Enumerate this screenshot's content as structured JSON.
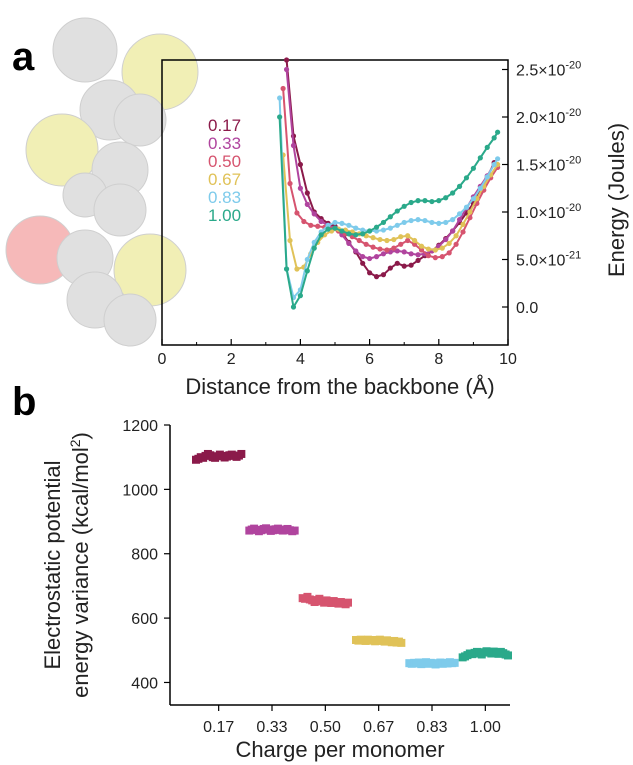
{
  "panel_a_letter": "a",
  "panel_b_letter": "b",
  "colors": {
    "0.17": "#8b1a4a",
    "0.33": "#b0449e",
    "0.50": "#d6546f",
    "0.67": "#e0c258",
    "0.83": "#7ecbeb",
    "1.00": "#2aa98a"
  },
  "chart_data": [
    {
      "type": "line",
      "panel": "a",
      "xlabel": "Distance from the backbone (Å)",
      "ylabel": "Energy (Joules)",
      "xlim": [
        0,
        10
      ],
      "ylim": [
        -4e-21,
        2.6e-20
      ],
      "x_ticks": [
        "0",
        "2",
        "4",
        "6",
        "8",
        "10"
      ],
      "y_ticks": [
        {
          "value": 0,
          "base": "0.0",
          "exp": ""
        },
        {
          "value": 5e-21,
          "base": "5.0×10",
          "exp": "-21"
        },
        {
          "value": 1e-20,
          "base": "1.0×10",
          "exp": "-20"
        },
        {
          "value": 1.5e-20,
          "base": "1.5×10",
          "exp": "-20"
        },
        {
          "value": 2e-20,
          "base": "2.0×10",
          "exp": "-20"
        },
        {
          "value": 2.5e-20,
          "base": "2.5×10",
          "exp": "-20"
        }
      ],
      "legend_position": "top-left",
      "grid": false,
      "series": [
        {
          "name": "0.17",
          "x": [
            3.6,
            3.8,
            4.0,
            4.2,
            4.4,
            4.6,
            4.8,
            5.0,
            5.2,
            5.4,
            5.6,
            5.8,
            6.0,
            6.2,
            6.4,
            6.6,
            6.8,
            7.0,
            7.2,
            7.4,
            7.6,
            7.8,
            8.0,
            8.2,
            8.4,
            8.6,
            8.8,
            9.0,
            9.2,
            9.4,
            9.6
          ],
          "y": [
            2.6e-20,
            1.8e-20,
            1.5e-20,
            1.2e-20,
            1e-20,
            9.3e-21,
            8.8e-21,
            8.5e-21,
            7.8e-21,
            6.8e-21,
            5.8e-21,
            4.6e-21,
            3.6e-21,
            3.2e-21,
            3.4e-21,
            4.1e-21,
            4.6e-21,
            4.3e-21,
            4.4e-21,
            4.9e-21,
            5.4e-21,
            5.9e-21,
            6.5e-21,
            7.2e-21,
            8e-21,
            8.9e-21,
            9.9e-21,
            1.09e-20,
            1.22e-20,
            1.36e-20,
            1.52e-20
          ]
        },
        {
          "name": "0.33",
          "x": [
            3.6,
            3.8,
            4.0,
            4.2,
            4.4,
            4.6,
            4.8,
            5.0,
            5.2,
            5.4,
            5.6,
            5.8,
            6.0,
            6.2,
            6.4,
            6.6,
            6.8,
            7.0,
            7.2,
            7.4,
            7.6,
            7.8,
            8.0,
            8.2,
            8.4,
            8.6,
            8.8,
            9.0,
            9.2,
            9.4,
            9.6
          ],
          "y": [
            2.5e-20,
            1.7e-20,
            1.25e-20,
            1.08e-20,
            9.8e-21,
            9e-21,
            8.6e-21,
            8.3e-21,
            7.6e-21,
            6.7e-21,
            5.9e-21,
            5.3e-21,
            5.1e-21,
            5.3e-21,
            5.6e-21,
            5.8e-21,
            5.9e-21,
            5.8e-21,
            5.6e-21,
            5.5e-21,
            5.6e-21,
            5.9e-21,
            6.4e-21,
            7.1e-21,
            8e-21,
            9.2e-21,
            1.04e-20,
            1.16e-20,
            1.27e-20,
            1.38e-20,
            1.5e-20
          ]
        },
        {
          "name": "0.50",
          "x": [
            3.5,
            3.7,
            3.9,
            4.1,
            4.3,
            4.5,
            4.7,
            4.9,
            5.1,
            5.3,
            5.5,
            5.7,
            5.9,
            6.1,
            6.3,
            6.5,
            6.7,
            6.9,
            7.1,
            7.3,
            7.5,
            7.7,
            7.9,
            8.1,
            8.3,
            8.5,
            8.7,
            8.9,
            9.1,
            9.3,
            9.5,
            9.7
          ],
          "y": [
            2.3e-20,
            1.3e-20,
            9.9e-21,
            9e-21,
            8.6e-21,
            8.5e-21,
            8.4e-21,
            8.2e-21,
            8e-21,
            7.7e-21,
            7.4e-21,
            7e-21,
            6.6e-21,
            6.3e-21,
            6.1e-21,
            6e-21,
            6.2e-21,
            6.6e-21,
            7e-21,
            6.6e-21,
            6e-21,
            5.4e-21,
            5.2e-21,
            5.3e-21,
            5.7e-21,
            6.6e-21,
            7.9e-21,
            9.4e-21,
            1.09e-20,
            1.23e-20,
            1.36e-20,
            1.47e-20
          ]
        },
        {
          "name": "0.67",
          "x": [
            3.5,
            3.7,
            3.9,
            4.1,
            4.3,
            4.5,
            4.7,
            4.9,
            5.1,
            5.3,
            5.5,
            5.7,
            5.9,
            6.1,
            6.3,
            6.5,
            6.7,
            6.9,
            7.1,
            7.3,
            7.5,
            7.7,
            7.9,
            8.1,
            8.3,
            8.5,
            8.7,
            8.9,
            9.1,
            9.3,
            9.5,
            9.7
          ],
          "y": [
            1.6e-20,
            7e-21,
            4e-21,
            4.2e-21,
            5.6e-21,
            6.8e-21,
            7.6e-21,
            8e-21,
            8.2e-21,
            8.1e-21,
            7.9e-21,
            7.7e-21,
            7.5e-21,
            7.3e-21,
            7.1e-21,
            7e-21,
            7.1e-21,
            7.4e-21,
            7.5e-21,
            7e-21,
            6.4e-21,
            6.1e-21,
            6e-21,
            6.2e-21,
            6.7e-21,
            7.5e-21,
            8.7e-21,
            1e-20,
            1.14e-20,
            1.27e-20,
            1.39e-20,
            1.5e-20
          ]
        },
        {
          "name": "0.83",
          "x": [
            3.4,
            3.6,
            3.8,
            4.0,
            4.2,
            4.4,
            4.6,
            4.8,
            5.0,
            5.2,
            5.4,
            5.6,
            5.8,
            6.0,
            6.2,
            6.4,
            6.6,
            6.8,
            7.0,
            7.2,
            7.4,
            7.6,
            7.8,
            8.0,
            8.2,
            8.4,
            8.6,
            8.8,
            9.0,
            9.2,
            9.4,
            9.6,
            9.7
          ],
          "y": [
            2.2e-20,
            4e-21,
            1e-21,
            1.8e-21,
            5e-21,
            6.8e-21,
            7.9e-21,
            8.6e-21,
            8.9e-21,
            8.8e-21,
            8.6e-21,
            8.3e-21,
            8.1e-21,
            8e-21,
            8e-21,
            8.1e-21,
            8.3e-21,
            8.6e-21,
            8.9e-21,
            9.1e-21,
            9.2e-21,
            9.1e-21,
            8.9e-21,
            8.8e-21,
            8.9e-21,
            9.2e-21,
            9.8e-21,
            1.05e-20,
            1.14e-20,
            1.25e-20,
            1.37e-20,
            1.5e-20,
            1.56e-20
          ]
        },
        {
          "name": "1.00",
          "x": [
            3.4,
            3.6,
            3.8,
            4.0,
            4.2,
            4.4,
            4.6,
            4.8,
            5.0,
            5.2,
            5.4,
            5.6,
            5.8,
            6.0,
            6.2,
            6.4,
            6.6,
            6.8,
            7.0,
            7.2,
            7.4,
            7.6,
            7.8,
            8.0,
            8.2,
            8.4,
            8.6,
            8.8,
            9.0,
            9.2,
            9.4,
            9.6,
            9.7
          ],
          "y": [
            2e-20,
            4e-21,
            0.0,
            1.2e-21,
            3.8e-21,
            6.2e-21,
            7.6e-21,
            8.2e-21,
            8.3e-21,
            8e-21,
            7.7e-21,
            7.6e-21,
            7.7e-21,
            8e-21,
            8.4e-21,
            8.9e-21,
            9.5e-21,
            1.01e-20,
            1.06e-20,
            1.1e-20,
            1.12e-20,
            1.12e-20,
            1.11e-20,
            1.12e-20,
            1.15e-20,
            1.2e-20,
            1.27e-20,
            1.36e-20,
            1.46e-20,
            1.57e-20,
            1.68e-20,
            1.78e-20,
            1.84e-20
          ]
        }
      ]
    },
    {
      "type": "scatter",
      "panel": "b",
      "xlabel": "Charge per monomer",
      "ylabel_line1": "Electrostatic potential",
      "ylabel_line2_base": "energy variance (kcal/mol",
      "ylabel_line2_sup": "2",
      "ylabel_line2_tail": ")",
      "ylim": [
        330,
        1200
      ],
      "y_ticks": [
        400,
        600,
        800,
        1000,
        1200
      ],
      "categories": [
        "0.17",
        "0.33",
        "0.50",
        "0.67",
        "0.83",
        "1.00"
      ],
      "grid": false,
      "series": [
        {
          "name": "0.17",
          "values": [
            1092,
            1095,
            1100,
            1098,
            1104,
            1110,
            1106,
            1100,
            1098,
            1103,
            1108,
            1104,
            1099,
            1102,
            1106,
            1108,
            1104,
            1101,
            1105,
            1110
          ]
        },
        {
          "name": "0.33",
          "values": [
            872,
            875,
            878,
            874,
            870,
            873,
            877,
            879,
            875,
            871,
            873,
            876,
            878,
            874,
            872,
            875,
            877,
            873,
            870,
            872
          ]
        },
        {
          "name": "0.50",
          "values": [
            662,
            660,
            666,
            658,
            655,
            650,
            656,
            660,
            652,
            648,
            655,
            651,
            647,
            653,
            649,
            645,
            650,
            646,
            643,
            648
          ]
        },
        {
          "name": "0.67",
          "values": [
            532,
            530,
            533,
            531,
            529,
            533,
            530,
            532,
            528,
            530,
            533,
            529,
            527,
            531,
            528,
            525,
            529,
            524,
            527,
            523
          ]
        },
        {
          "name": "0.83",
          "values": [
            460,
            458,
            461,
            459,
            462,
            457,
            460,
            463,
            458,
            461,
            459,
            456,
            460,
            462,
            458,
            461,
            459,
            463,
            460,
            461
          ]
        },
        {
          "name": "1.00",
          "values": [
            478,
            481,
            485,
            490,
            488,
            492,
            495,
            490,
            487,
            494,
            497,
            493,
            490,
            496,
            492,
            489,
            495,
            491,
            487,
            484
          ]
        }
      ]
    }
  ]
}
